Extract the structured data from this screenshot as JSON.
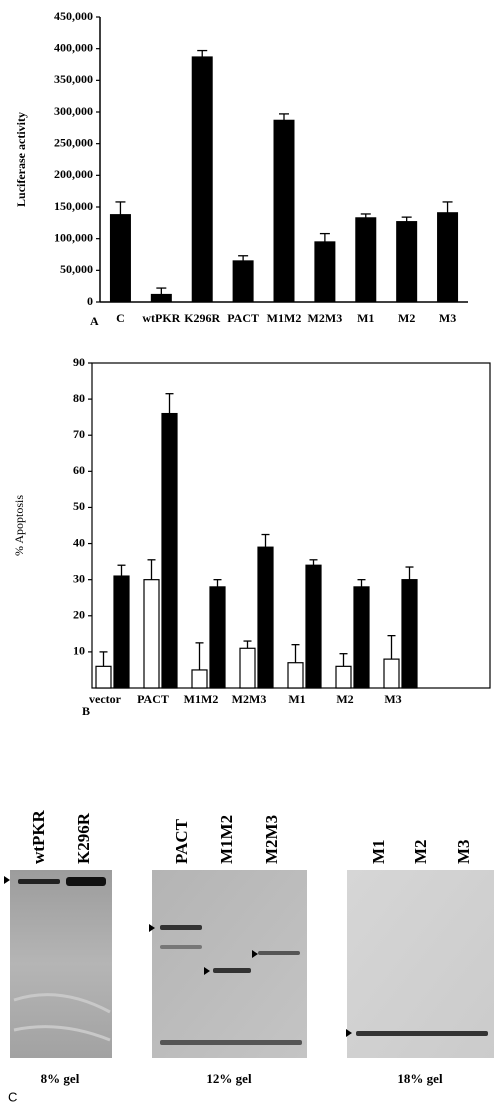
{
  "chart_data": [
    {
      "type": "bar",
      "panel_label": "A",
      "y_label": "Luciferase activity",
      "categories": [
        "C",
        "wtPKR",
        "K296R",
        "PACT",
        "M1M2",
        "M2M3",
        "M1",
        "M2",
        "M3"
      ],
      "values": [
        138000,
        12000,
        387000,
        65000,
        287000,
        95000,
        133000,
        127000,
        141000
      ],
      "errors": [
        20000,
        10000,
        10000,
        8000,
        10000,
        13000,
        6000,
        7000,
        17000
      ],
      "color": "#000000",
      "ylim": [
        0,
        450000
      ],
      "yticks": [
        0,
        {
          "value": 50000,
          "label": "50,000"
        },
        {
          "value": 100000,
          "label": "100,000"
        },
        {
          "value": 150000,
          "label": "150,000"
        },
        {
          "value": 200000,
          "label": "200,000"
        },
        {
          "value": 250000,
          "label": "250,000"
        },
        {
          "value": 300000,
          "label": "300,000"
        },
        {
          "value": 350000,
          "label": "350,000"
        },
        {
          "value": 400000,
          "label": "400,000"
        },
        {
          "value": 450000,
          "label": "450,000"
        }
      ]
    },
    {
      "type": "grouped_bar",
      "panel_label": "B",
      "y_label": "% Apoptosis",
      "categories": [
        "vector",
        "PACT",
        "M1M2",
        "M2M3",
        "M1",
        "M2",
        "M3"
      ],
      "series": [
        {
          "color": "#ffffff",
          "values": [
            6,
            30,
            5,
            11,
            7,
            6,
            8
          ],
          "errors": [
            4,
            5.5,
            7.5,
            2,
            5,
            3.5,
            6.5
          ]
        },
        {
          "color": "#000000",
          "values": [
            31,
            76,
            28,
            39,
            34,
            28,
            30
          ],
          "errors": [
            3,
            5.5,
            2,
            3.5,
            1.5,
            2,
            3.5
          ]
        }
      ],
      "ylim": [
        0,
        90
      ],
      "yticks": [
        10,
        20,
        30,
        40,
        50,
        60,
        70,
        80,
        90
      ]
    }
  ],
  "panel_c": {
    "label": "C",
    "gels": [
      {
        "caption": "8% gel",
        "lanes": [
          "wtPKR",
          "K296R"
        ]
      },
      {
        "caption": "12% gel",
        "lanes": [
          "PACT",
          "M1M2",
          "M2M3"
        ]
      },
      {
        "caption": "18% gel",
        "lanes": [
          "M1",
          "M2",
          "M3"
        ]
      }
    ]
  }
}
